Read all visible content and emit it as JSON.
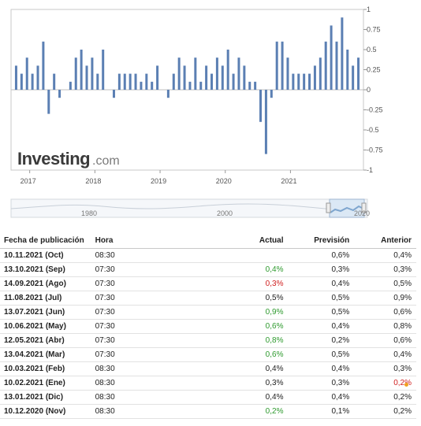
{
  "chart_data": {
    "type": "bar",
    "watermark": {
      "brand": "Investing",
      "suffix": ".com"
    },
    "colors": {
      "bar": "#5b7fb3",
      "grid": "#dddddd",
      "navigator": "#7fa6cf"
    },
    "ylim": [
      -1,
      1
    ],
    "y_ticks": [
      "1",
      "0.75",
      "0.5",
      "0.25",
      "0",
      "-0.25",
      "-0.5",
      "-0.75",
      "-1"
    ],
    "x_ticks": [
      "2017",
      "2018",
      "2019",
      "2020",
      "2021"
    ],
    "navigator_ticks": [
      "1980",
      "2000",
      "2020"
    ],
    "values": [
      0.3,
      0.2,
      0.4,
      0.2,
      0.3,
      0.6,
      -0.3,
      0.2,
      -0.1,
      0,
      0.1,
      0.4,
      0.5,
      0.3,
      0.4,
      0.2,
      0.5,
      0,
      -0.1,
      0.2,
      0.2,
      0.2,
      0.2,
      0.1,
      0.2,
      0.1,
      0.3,
      0,
      -0.1,
      0.2,
      0.4,
      0.3,
      0.1,
      0.4,
      0.1,
      0.3,
      0.2,
      0.4,
      0.3,
      0.5,
      0.2,
      0.4,
      0.3,
      0.1,
      0.1,
      -0.4,
      -0.8,
      -0.1,
      0.6,
      0.6,
      0.4,
      0.2,
      0.2,
      0.2,
      0.2,
      0.3,
      0.4,
      0.6,
      0.8,
      0.6,
      0.9,
      0.5,
      0.3,
      0.4
    ]
  },
  "table": {
    "headers": {
      "date": "Fecha de publicación",
      "time": "Hora",
      "actual": "Actual",
      "forecast": "Previsión",
      "previous": "Anterior"
    },
    "rows": [
      {
        "date": "10.11.2021 (Oct)",
        "time": "08:30",
        "actual": "",
        "forecast": "0,6%",
        "previous": "0,4%"
      },
      {
        "date": "13.10.2021 (Sep)",
        "time": "07:30",
        "actual": "0,4%",
        "forecast": "0,3%",
        "previous": "0,3%"
      },
      {
        "date": "14.09.2021 (Ago)",
        "time": "07:30",
        "actual": "0,3%",
        "forecast": "0,4%",
        "previous": "0,5%"
      },
      {
        "date": "11.08.2021 (Jul)",
        "time": "07:30",
        "actual": "0,5%",
        "forecast": "0,5%",
        "previous": "0,9%"
      },
      {
        "date": "13.07.2021 (Jun)",
        "time": "07:30",
        "actual": "0,9%",
        "forecast": "0,5%",
        "previous": "0,6%"
      },
      {
        "date": "10.06.2021 (May)",
        "time": "07:30",
        "actual": "0,6%",
        "forecast": "0,4%",
        "previous": "0,8%"
      },
      {
        "date": "12.05.2021 (Abr)",
        "time": "07:30",
        "actual": "0,8%",
        "forecast": "0,2%",
        "previous": "0,6%"
      },
      {
        "date": "13.04.2021 (Mar)",
        "time": "07:30",
        "actual": "0,6%",
        "forecast": "0,5%",
        "previous": "0,4%"
      },
      {
        "date": "10.03.2021 (Feb)",
        "time": "08:30",
        "actual": "0,4%",
        "forecast": "0,4%",
        "previous": "0,3%"
      },
      {
        "date": "10.02.2021 (Ene)",
        "time": "08:30",
        "actual": "0,3%",
        "forecast": "0,3%",
        "previous": "0,2%"
      },
      {
        "date": "13.01.2021 (Dic)",
        "time": "08:30",
        "actual": "0,4%",
        "forecast": "0,4%",
        "previous": "0,2%"
      },
      {
        "date": "10.12.2020 (Nov)",
        "time": "08:30",
        "actual": "0,2%",
        "forecast": "0,1%",
        "previous": "0,2%"
      }
    ],
    "actual_colors": [
      "",
      "green",
      "red",
      "",
      "green",
      "green",
      "green",
      "green",
      "",
      "",
      "",
      "green"
    ],
    "previous_colors": [
      "",
      "",
      "",
      "",
      "",
      "",
      "",
      "",
      "",
      "red",
      "",
      ""
    ],
    "revised_marker_row": 9
  }
}
